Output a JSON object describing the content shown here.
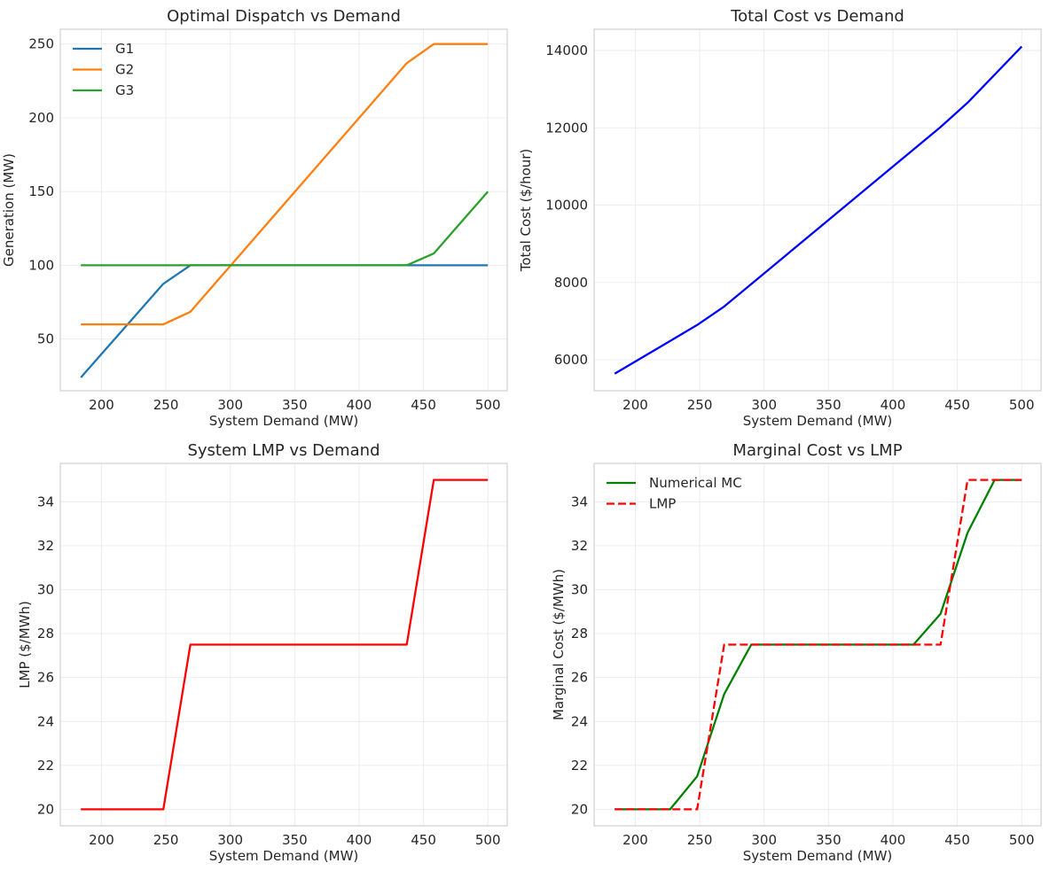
{
  "figure": {
    "background": "#ffffff",
    "grid_color": "#ebebeb",
    "frame_color": "#cccccc"
  },
  "chart_data": [
    {
      "type": "line",
      "title": "Optimal Dispatch vs Demand",
      "xlabel": "System Demand (MW)",
      "ylabel": "Generation (MW)",
      "xlim": [
        168,
        515
      ],
      "ylim": [
        15,
        260
      ],
      "xticks": [
        200,
        250,
        300,
        350,
        400,
        450,
        500
      ],
      "yticks": [
        50,
        100,
        150,
        200,
        250
      ],
      "grid": true,
      "legend": "upper-left",
      "series": [
        {
          "name": "G1",
          "color": "#1f77b4",
          "dash": "",
          "x": [
            184,
            248,
            269,
            290,
            500
          ],
          "y": [
            24,
            87.5,
            100,
            100,
            100
          ]
        },
        {
          "name": "G2",
          "color": "#ff7f0e",
          "dash": "",
          "x": [
            184,
            248,
            269,
            437,
            458,
            500
          ],
          "y": [
            60,
            60,
            68.5,
            237,
            250,
            250
          ]
        },
        {
          "name": "G3",
          "color": "#2ca02c",
          "dash": "",
          "x": [
            184,
            437,
            458,
            500
          ],
          "y": [
            100,
            100,
            108,
            150
          ]
        }
      ]
    },
    {
      "type": "line",
      "title": "Total Cost vs Demand",
      "xlabel": "System Demand (MW)",
      "ylabel": "Total Cost ($/hour)",
      "xlim": [
        168,
        515
      ],
      "ylim": [
        5200,
        14550
      ],
      "xticks": [
        200,
        250,
        300,
        350,
        400,
        450,
        500
      ],
      "yticks": [
        6000,
        8000,
        10000,
        12000,
        14000
      ],
      "grid": true,
      "legend": "none",
      "series": [
        {
          "name": "",
          "color": "#0000ff",
          "dash": "",
          "x": [
            184,
            248,
            269,
            290,
            437,
            458,
            500
          ],
          "y": [
            5640,
            6900,
            7380,
            7960,
            12020,
            12650,
            14100
          ]
        }
      ]
    },
    {
      "type": "line",
      "title": "System LMP vs Demand",
      "xlabel": "System Demand (MW)",
      "ylabel": "LMP ($/MWh)",
      "xlim": [
        168,
        515
      ],
      "ylim": [
        19.25,
        35.75
      ],
      "xticks": [
        200,
        250,
        300,
        350,
        400,
        450,
        500
      ],
      "yticks": [
        20,
        22,
        24,
        26,
        28,
        30,
        32,
        34
      ],
      "grid": true,
      "legend": "none",
      "series": [
        {
          "name": "",
          "color": "#ff0000",
          "dash": "",
          "x": [
            184,
            248,
            269,
            437,
            458,
            500
          ],
          "y": [
            20,
            20,
            27.5,
            27.5,
            35,
            35
          ]
        }
      ]
    },
    {
      "type": "line",
      "title": "Marginal Cost vs LMP",
      "xlabel": "System Demand (MW)",
      "ylabel": "Marginal Cost ($/MWh)",
      "xlim": [
        168,
        515
      ],
      "ylim": [
        19.25,
        35.75
      ],
      "xticks": [
        200,
        250,
        300,
        350,
        400,
        450,
        500
      ],
      "yticks": [
        20,
        22,
        24,
        26,
        28,
        30,
        32,
        34
      ],
      "grid": true,
      "legend": "upper-left",
      "series": [
        {
          "name": "Numerical MC",
          "color": "#008000",
          "dash": "",
          "x": [
            184,
            227,
            248,
            269,
            290,
            416,
            437,
            458,
            479,
            500
          ],
          "y": [
            20,
            20,
            21.5,
            25.25,
            27.5,
            27.5,
            28.9,
            32.6,
            35,
            35
          ]
        },
        {
          "name": "LMP",
          "color": "#ff0000",
          "dash": "9,4",
          "x": [
            184,
            248,
            269,
            437,
            458,
            500
          ],
          "y": [
            20,
            20,
            27.5,
            27.5,
            35,
            35
          ]
        }
      ]
    }
  ]
}
